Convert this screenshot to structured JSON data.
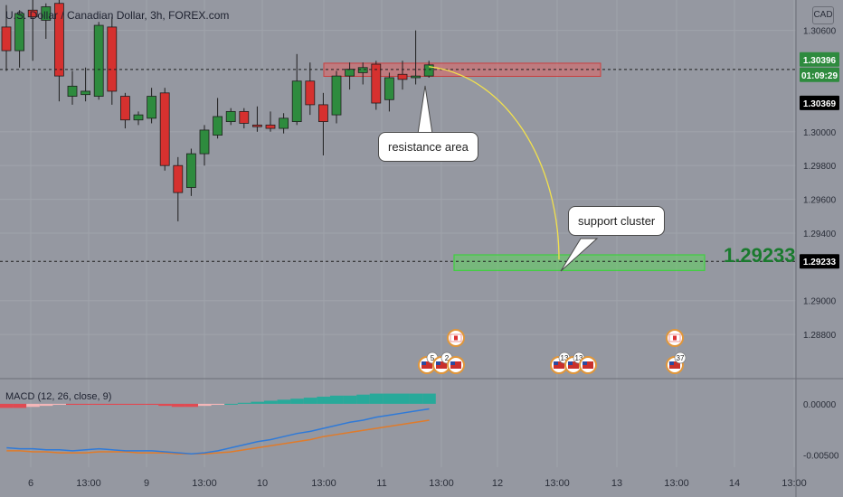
{
  "header": {
    "title": "U.S. Dollar / Canadian Dollar, 3h, FOREX.com",
    "currency_badge": "CAD"
  },
  "annotations": {
    "resistance_label": "resistance area",
    "support_label": "support cluster",
    "target_price": "1.29233"
  },
  "price_tags": {
    "current": "1.30396",
    "countdown": "01:09:29",
    "second": "1.30369",
    "support": "1.29233"
  },
  "macd": {
    "label": "MACD (12, 26, close, 9)",
    "ticks": [
      "0.00000",
      "-0.00500"
    ]
  },
  "events": {
    "badges": [
      "5",
      "2",
      "13",
      "13",
      "37"
    ]
  },
  "colors": {
    "background": "#9598a1",
    "bull": "#2e8b3e",
    "bear": "#d6312f",
    "resistance_zone": "#e06565",
    "support_zone": "#5fd35f",
    "projection": "#f2e14c",
    "macd_line": "#2f7ad8",
    "signal_line": "#e07b2a",
    "hist_pos": "#28a99a",
    "hist_pos_light": "#b3e6e0",
    "hist_neg": "#e04a52",
    "hist_neg_light": "#f4b6b8"
  },
  "chart_data": {
    "type": "candlestick",
    "title": "U.S. Dollar / Canadian Dollar, 3h, FOREX.com",
    "ylim": [
      1.2856,
      1.3078
    ],
    "y_ticks": [
      "1.30600",
      "1.30000",
      "1.29800",
      "1.29600",
      "1.29400",
      "1.29000",
      "1.28800"
    ],
    "x_ticks": [
      "6",
      "13:00",
      "9",
      "13:00",
      "10",
      "13:00",
      "11",
      "13:00",
      "12",
      "13:00",
      "13",
      "13:00",
      "14",
      "13:00"
    ],
    "candles": [
      {
        "o": 1.3062,
        "h": 1.3075,
        "l": 1.3036,
        "c": 1.3048
      },
      {
        "o": 1.3048,
        "h": 1.3072,
        "l": 1.3038,
        "c": 1.307
      },
      {
        "o": 1.3072,
        "h": 1.3078,
        "l": 1.3042,
        "c": 1.3068
      },
      {
        "o": 1.3066,
        "h": 1.3076,
        "l": 1.3055,
        "c": 1.3074
      },
      {
        "o": 1.3076,
        "h": 1.3078,
        "l": 1.3018,
        "c": 1.3033
      },
      {
        "o": 1.3021,
        "h": 1.3036,
        "l": 1.3016,
        "c": 1.3027
      },
      {
        "o": 1.3022,
        "h": 1.3038,
        "l": 1.3018,
        "c": 1.3024
      },
      {
        "o": 1.3021,
        "h": 1.3065,
        "l": 1.3019,
        "c": 1.3063
      },
      {
        "o": 1.3062,
        "h": 1.3068,
        "l": 1.3016,
        "c": 1.3024
      },
      {
        "o": 1.3021,
        "h": 1.3023,
        "l": 1.3002,
        "c": 1.3007
      },
      {
        "o": 1.3007,
        "h": 1.3012,
        "l": 1.3004,
        "c": 1.301
      },
      {
        "o": 1.3008,
        "h": 1.3026,
        "l": 1.3005,
        "c": 1.3021
      },
      {
        "o": 1.3023,
        "h": 1.3026,
        "l": 1.2977,
        "c": 1.298
      },
      {
        "o": 1.298,
        "h": 1.2985,
        "l": 1.2947,
        "c": 1.2964
      },
      {
        "o": 1.2967,
        "h": 1.299,
        "l": 1.2962,
        "c": 1.2987
      },
      {
        "o": 1.2987,
        "h": 1.3004,
        "l": 1.298,
        "c": 1.3001
      },
      {
        "o": 1.2998,
        "h": 1.302,
        "l": 1.2996,
        "c": 1.3009
      },
      {
        "o": 1.3006,
        "h": 1.3014,
        "l": 1.3004,
        "c": 1.3012
      },
      {
        "o": 1.3012,
        "h": 1.3014,
        "l": 1.3002,
        "c": 1.3005
      },
      {
        "o": 1.3004,
        "h": 1.3015,
        "l": 1.3,
        "c": 1.3003
      },
      {
        "o": 1.3004,
        "h": 1.3012,
        "l": 1.3,
        "c": 1.3002
      },
      {
        "o": 1.3002,
        "h": 1.3011,
        "l": 1.2999,
        "c": 1.3008
      },
      {
        "o": 1.3006,
        "h": 1.3046,
        "l": 1.3004,
        "c": 1.303
      },
      {
        "o": 1.303,
        "h": 1.3041,
        "l": 1.301,
        "c": 1.3016
      },
      {
        "o": 1.3016,
        "h": 1.3023,
        "l": 1.2986,
        "c": 1.3006
      },
      {
        "o": 1.301,
        "h": 1.3036,
        "l": 1.3005,
        "c": 1.3033
      },
      {
        "o": 1.3033,
        "h": 1.3041,
        "l": 1.3025,
        "c": 1.3037
      },
      {
        "o": 1.3035,
        "h": 1.3041,
        "l": 1.3028,
        "c": 1.3038
      },
      {
        "o": 1.304,
        "h": 1.3042,
        "l": 1.3013,
        "c": 1.3017
      },
      {
        "o": 1.3019,
        "h": 1.3035,
        "l": 1.3012,
        "c": 1.3032
      },
      {
        "o": 1.3034,
        "h": 1.3042,
        "l": 1.3025,
        "c": 1.3031
      },
      {
        "o": 1.3032,
        "h": 1.306,
        "l": 1.3028,
        "c": 1.3033
      },
      {
        "o": 1.3033,
        "h": 1.3042,
        "l": 1.3032,
        "c": 1.30396
      }
    ],
    "resistance_zone": [
      1.30328,
      1.30406
    ],
    "support_zone": [
      1.292,
      1.2925
    ],
    "support_price": 1.29233,
    "dotted_price": 1.30369,
    "macd": {
      "ylim": [
        -0.0062,
        0.0022
      ],
      "histogram": [
        -0.0004,
        -0.0004,
        -0.0003,
        -0.0002,
        -0.0001,
        -0.0001,
        -0.0001,
        -0.0001,
        -0.0001,
        -0.0001,
        -0.0001,
        -0.0001,
        -0.0002,
        -0.0003,
        -0.0003,
        -0.0002,
        -0.0001,
        0.0,
        0.0001,
        0.0002,
        0.0003,
        0.0004,
        0.0005,
        0.0006,
        0.0007,
        0.0008,
        0.0008,
        0.0009,
        0.001,
        0.001,
        0.001,
        0.001,
        0.001
      ],
      "macd_line": [
        -0.0043,
        -0.0044,
        -0.0044,
        -0.0045,
        -0.0045,
        -0.0046,
        -0.0045,
        -0.0044,
        -0.0045,
        -0.0046,
        -0.0046,
        -0.0046,
        -0.0047,
        -0.0048,
        -0.0049,
        -0.0048,
        -0.0046,
        -0.0043,
        -0.004,
        -0.0037,
        -0.0035,
        -0.0032,
        -0.0029,
        -0.0027,
        -0.0024,
        -0.0021,
        -0.0018,
        -0.0016,
        -0.0013,
        -0.0011,
        -0.0009,
        -0.0007,
        -0.0005
      ],
      "signal_line": [
        -0.0046,
        -0.0046,
        -0.0047,
        -0.0047,
        -0.0048,
        -0.0048,
        -0.0048,
        -0.0047,
        -0.0047,
        -0.0047,
        -0.0048,
        -0.0048,
        -0.0048,
        -0.0049,
        -0.0049,
        -0.0049,
        -0.0048,
        -0.0047,
        -0.0045,
        -0.0043,
        -0.0041,
        -0.0039,
        -0.0037,
        -0.0035,
        -0.0032,
        -0.003,
        -0.0028,
        -0.0026,
        -0.0024,
        -0.0022,
        -0.002,
        -0.0018,
        -0.0016
      ]
    }
  }
}
